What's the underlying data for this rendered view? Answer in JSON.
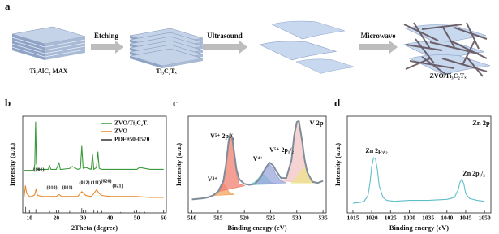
{
  "panel_a": {
    "label": "a",
    "materials": [
      "Ti₃AlC₂ MAX",
      "Ti₃C₂Tₓ",
      "ZVO/Ti₃C₂Tₓ"
    ],
    "steps": [
      "Etching",
      "Ultrasound",
      "Microwave"
    ]
  },
  "chart_data": [
    {
      "type": "line",
      "label": "b",
      "xlabel": "2Theta (degree)",
      "ylabel": "Intensity (a.u.)",
      "xlim": [
        7.5,
        61
      ],
      "ylim": [
        0,
        100
      ],
      "xticks": [
        10,
        20,
        30,
        40,
        50,
        60
      ],
      "legend": "upper right",
      "series": [
        {
          "name": "ZVO/Ti₃C₂Tₓ",
          "color": "#3a9a3a",
          "style": "line",
          "x": [
            8,
            10,
            11.5,
            12,
            12.3,
            12.6,
            13,
            14,
            17,
            17.5,
            18,
            20,
            21,
            21.5,
            22,
            25,
            26,
            28,
            29,
            29.5,
            30,
            31,
            33,
            33.5,
            34,
            35,
            35.5,
            36,
            37,
            40,
            45,
            50,
            51,
            55,
            60
          ],
          "values": [
            44,
            44,
            44,
            50,
            94,
            52,
            45,
            45,
            45,
            49,
            45,
            45,
            52,
            45,
            45,
            46,
            48,
            45,
            46,
            69,
            46,
            47,
            45,
            60,
            45,
            47,
            63,
            46,
            45,
            45,
            45,
            45,
            47,
            45,
            45
          ]
        },
        {
          "name": "ZVO",
          "color": "#e8872a",
          "style": "line",
          "x": [
            8,
            8.5,
            9,
            10,
            11,
            12,
            12.5,
            13,
            15,
            17,
            18,
            20,
            21,
            22,
            25,
            28,
            29.5,
            31,
            33,
            34,
            35,
            36,
            37,
            40,
            45,
            50,
            55,
            60
          ],
          "values": [
            16,
            28,
            20,
            17,
            17,
            19,
            25,
            18,
            17,
            17,
            17,
            17,
            19,
            17,
            17,
            17,
            22,
            18,
            17,
            20,
            24,
            20,
            18,
            17,
            17,
            17,
            16,
            16
          ]
        },
        {
          "name": "PDF#50-0570",
          "color": "#333333",
          "style": "stick",
          "x": [
            8.6,
            12.4,
            17.5,
            21,
            25,
            29.5,
            31,
            34,
            35.5,
            37,
            44,
            49,
            51,
            53
          ],
          "values": [
            6,
            4,
            2,
            3,
            2,
            5,
            3,
            3,
            2,
            2,
            1,
            2,
            1,
            1
          ]
        }
      ],
      "annotations": [
        "(001)",
        "(010)",
        "(011)",
        "(012)",
        "(111)",
        "(020)",
        "(021)"
      ]
    },
    {
      "type": "line",
      "label": "c",
      "tag": "V 2p",
      "xlabel": "Binding energy (eV)",
      "ylabel": "Intensity (a.u.)",
      "xlim": [
        509.3,
        535.6
      ],
      "ylim": [
        0,
        100
      ],
      "xticks": [
        510,
        515,
        520,
        525,
        530,
        535
      ],
      "series": [
        {
          "color": "#f2c4c4",
          "style": "area",
          "x": [
            527,
            528,
            529,
            529.5,
            530,
            530.4,
            531,
            532,
            533
          ],
          "values": [
            33,
            35,
            53,
            78,
            92,
            93,
            72,
            40,
            31
          ]
        },
        {
          "color": "#eee38a",
          "style": "area",
          "x": [
            529,
            530,
            531,
            531.5,
            532,
            533,
            534
          ],
          "values": [
            31,
            36,
            44,
            47,
            42,
            33,
            31
          ]
        },
        {
          "color": "#f4a460",
          "style": "area",
          "x": [
            514,
            515,
            515.5,
            516,
            516.5,
            517,
            518
          ],
          "values": [
            18,
            22,
            27,
            30,
            27,
            22,
            19
          ]
        },
        {
          "color": "#f08070",
          "style": "area",
          "x": [
            515,
            516,
            516.5,
            517,
            517.3,
            517.7,
            518,
            518.5,
            519,
            520
          ],
          "values": [
            22,
            30,
            46,
            70,
            80,
            74,
            60,
            40,
            30,
            28
          ]
        },
        {
          "color": "#7fd3d8",
          "style": "area",
          "x": [
            521,
            522,
            523,
            523.5,
            524,
            525,
            526
          ],
          "values": [
            29,
            32,
            38,
            40,
            38,
            32,
            30
          ]
        },
        {
          "color": "#9aa6d8",
          "style": "area",
          "x": [
            522,
            523,
            524,
            524.8,
            525.5,
            526,
            527,
            528
          ],
          "values": [
            30,
            35,
            45,
            50,
            46,
            40,
            33,
            31
          ]
        },
        {
          "color": "#7f8c99",
          "style": "line",
          "x": [
            510,
            511,
            512,
            513,
            514,
            515,
            516,
            516.5,
            517,
            517.3,
            517.7,
            518,
            518.5,
            519,
            520,
            521,
            522,
            523,
            524,
            524.8,
            525.5,
            526,
            527,
            528,
            529,
            529.5,
            530,
            530.4,
            531,
            531.5,
            532,
            533,
            534,
            535
          ],
          "values": [
            14,
            14.5,
            15,
            16,
            18,
            22,
            33,
            50,
            74,
            82,
            78,
            65,
            45,
            35,
            30,
            29,
            30,
            36,
            46,
            52,
            49,
            44,
            36,
            36,
            55,
            80,
            94,
            95,
            75,
            55,
            42,
            32,
            31,
            33
          ]
        }
      ],
      "annotations": [
        "V⁴⁺",
        "V⁵⁺ 2p₃/₂",
        "V⁴⁺",
        "V⁵⁺ 2p₁/₂"
      ]
    },
    {
      "type": "line",
      "label": "d",
      "tag": "Zn 2p",
      "xlabel": "Binding energy (eV)",
      "ylabel": "Intensity (a.u.)",
      "xlim": [
        1013.5,
        1051.7
      ],
      "ylim": [
        0,
        100
      ],
      "xticks": [
        1015,
        1020,
        1025,
        1030,
        1035,
        1040,
        1045,
        1050
      ],
      "series": [
        {
          "color": "#5fbfc9",
          "style": "line",
          "x": [
            1015,
            1017,
            1018,
            1019,
            1019.5,
            1020,
            1020.5,
            1021,
            1021.5,
            1022,
            1023,
            1024,
            1026,
            1030,
            1035,
            1040,
            1042,
            1043,
            1043.5,
            1044,
            1044.5,
            1045,
            1046,
            1048,
            1050
          ],
          "values": [
            10,
            11,
            12,
            18,
            30,
            48,
            57,
            56,
            45,
            28,
            16,
            13,
            12,
            13,
            13,
            14,
            16,
            24,
            32,
            35,
            30,
            20,
            15,
            13,
            12
          ]
        }
      ],
      "annotations": [
        "Zn 2p₃/₂",
        "Zn 2p₁/₂"
      ]
    }
  ]
}
